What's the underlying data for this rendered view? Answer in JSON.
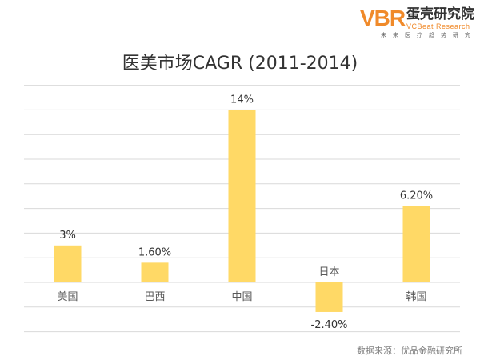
{
  "brand": {
    "mark": "VBR",
    "name_cn": "蛋壳研究院",
    "name_en": "VCBeat Research",
    "tagline": "未来医疗趋势研究"
  },
  "colors": {
    "bar": "#FFD966",
    "grid": "#D9D9D9",
    "accent": "#F08A2A"
  },
  "chart_data": {
    "type": "bar",
    "title": "医美市场CAGR (2011-2014)",
    "categories": [
      "美国",
      "巴西",
      "中国",
      "日本",
      "韩国"
    ],
    "values": [
      3.0,
      1.6,
      14.0,
      -2.4,
      6.2
    ],
    "value_labels": [
      "3%",
      "1.60%",
      "14%",
      "-2.40%",
      "6.20%"
    ],
    "ylim": [
      -4,
      16
    ],
    "grid": true,
    "legend": "none"
  },
  "source": "数据来源：优品金融研究所"
}
